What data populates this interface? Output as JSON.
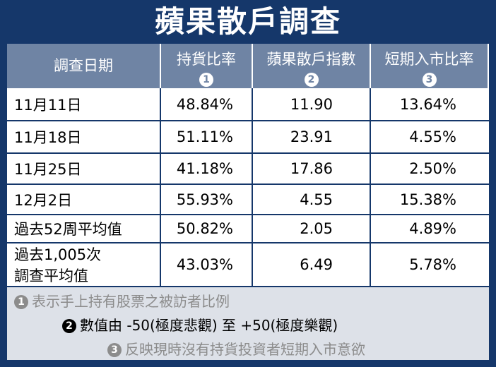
{
  "title": "蘋果散戶調查",
  "table": {
    "headers": [
      {
        "text": "調查日期"
      },
      {
        "text": "持貨比率",
        "marker": "1"
      },
      {
        "text": "蘋果散戶指數",
        "marker": "2"
      },
      {
        "text": "短期入市比率",
        "marker": "3"
      }
    ],
    "rows": [
      [
        [
          "11月11日"
        ],
        "48.84%",
        "11.90",
        "13.64%"
      ],
      [
        [
          "11月18日"
        ],
        "51.11%",
        "23.91",
        "4.55%"
      ],
      [
        [
          "11月25日"
        ],
        "41.18%",
        "17.86",
        "2.50%"
      ],
      [
        [
          "12月2日"
        ],
        "55.93%",
        "4.55",
        "15.38%"
      ],
      [
        [
          "過去52周平均值"
        ],
        "50.82%",
        "2.05",
        "4.89%"
      ],
      [
        [
          "過去1,005次",
          "調查平均值"
        ],
        "43.03%",
        "6.49",
        "5.78%"
      ]
    ]
  },
  "footnotes": [
    {
      "marker": "1",
      "text": "表示手上持有股票之被訪者比例"
    },
    {
      "marker": "2",
      "text": "數值由 -50(極度悲觀) 至 +50(極度樂觀)"
    },
    {
      "marker": "3",
      "text": "反映現時沒有持貨投資者短期入市意欲"
    }
  ]
}
